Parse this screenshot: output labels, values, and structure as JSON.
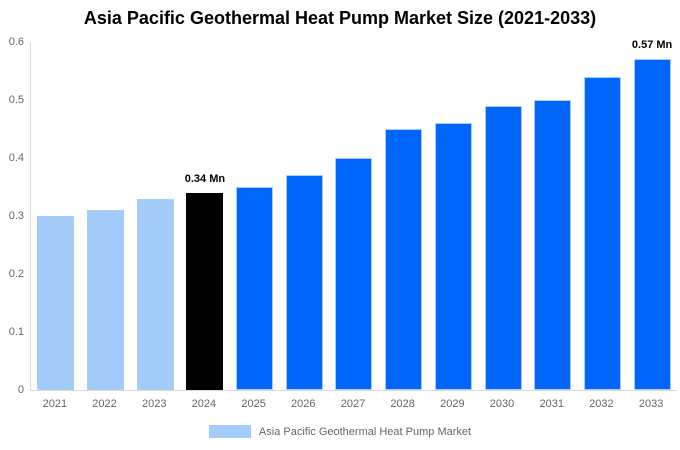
{
  "title": "Asia Pacific Geothermal Heat Pump Market Size (2021-2033)",
  "chart_data": {
    "type": "bar",
    "categories": [
      "2021",
      "2022",
      "2023",
      "2024",
      "2025",
      "2026",
      "2027",
      "2028",
      "2029",
      "2030",
      "2031",
      "2032",
      "2033"
    ],
    "series": [
      {
        "name": "Asia Pacific Geothermal Heat Pump Market",
        "values": [
          0.3,
          0.31,
          0.33,
          0.34,
          0.35,
          0.37,
          0.4,
          0.45,
          0.46,
          0.49,
          0.5,
          0.54,
          0.57
        ]
      }
    ],
    "unit": "Mn",
    "title": "Asia Pacific Geothermal Heat Pump Market Size (2021-2033)",
    "xlabel": "",
    "ylabel": "",
    "ylim": [
      0,
      0.6
    ],
    "yticks": [
      "0",
      "0.1",
      "0.2",
      "0.3",
      "0.4",
      "0.5",
      "0.6"
    ],
    "grid": false,
    "legend_position": "bottom",
    "annotations": [
      {
        "category": "2024",
        "text": "0.34 Mn"
      },
      {
        "category": "2033",
        "text": "0.57 Mn"
      }
    ],
    "bar_colors": [
      "#A3CCFA",
      "#A3CCFA",
      "#A3CCFA",
      "#000000",
      "#0066FA",
      "#0066FA",
      "#0066FA",
      "#0066FA",
      "#0066FA",
      "#0066FA",
      "#0066FA",
      "#0066FA",
      "#0066FA"
    ]
  },
  "legend": {
    "label": "Asia Pacific Geothermal Heat Pump Market",
    "swatch_color": "#A3CCFA"
  },
  "colors": {
    "historical_bar": "#A3CCFA",
    "highlight_bar": "#000000",
    "forecast_bar": "#0066FA",
    "bar_stroke": "#A9CEF9",
    "axis_line": "#D9D9D9",
    "tick_text": "#666666",
    "title_text": "#000000"
  }
}
